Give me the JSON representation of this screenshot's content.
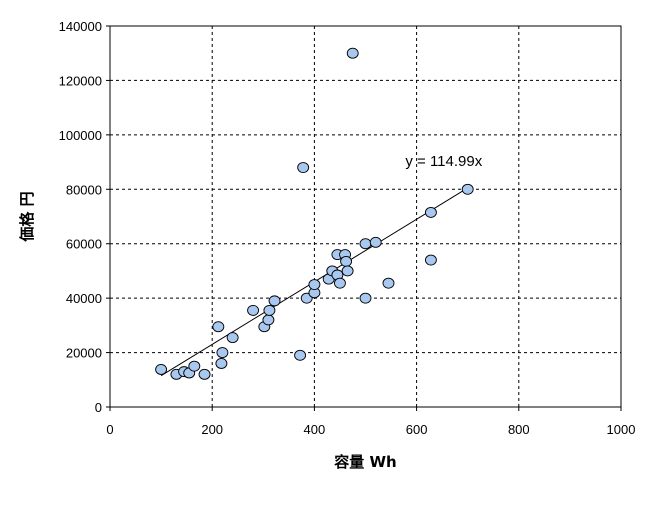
{
  "chart_data": {
    "type": "scatter",
    "xlabel": "容量 Wh",
    "ylabel": "価格 円",
    "xlim": [
      0,
      1000
    ],
    "ylim": [
      0,
      140000
    ],
    "x_ticks": [
      "0",
      "200",
      "400",
      "600",
      "800",
      "1000"
    ],
    "y_ticks": [
      "0",
      "20000",
      "40000",
      "60000",
      "80000",
      "100000",
      "120000",
      "140000"
    ],
    "grid": true,
    "point_color": "#a9c8f0",
    "point_edge_color": "#000000",
    "trendline": {
      "slope": 114.99,
      "x_start": 100,
      "x_end": 700,
      "label": "y = 114.99x"
    },
    "points": [
      [
        100,
        13800
      ],
      [
        130,
        12000
      ],
      [
        145,
        13000
      ],
      [
        155,
        12500
      ],
      [
        165,
        15000
      ],
      [
        185,
        12000
      ],
      [
        212,
        29500
      ],
      [
        218,
        16000
      ],
      [
        220,
        20000
      ],
      [
        240,
        25500
      ],
      [
        280,
        35500
      ],
      [
        302,
        29500
      ],
      [
        310,
        32000
      ],
      [
        312,
        35500
      ],
      [
        322,
        39000
      ],
      [
        372,
        19000
      ],
      [
        378,
        88000
      ],
      [
        385,
        40000
      ],
      [
        400,
        42000
      ],
      [
        400,
        45000
      ],
      [
        428,
        47000
      ],
      [
        435,
        50000
      ],
      [
        445,
        48500
      ],
      [
        445,
        56000
      ],
      [
        450,
        45500
      ],
      [
        460,
        56000
      ],
      [
        462,
        53500
      ],
      [
        465,
        50000
      ],
      [
        475,
        130000
      ],
      [
        500,
        60000
      ],
      [
        500,
        40000
      ],
      [
        520,
        60500
      ],
      [
        545,
        45500
      ],
      [
        628,
        71500
      ],
      [
        628,
        54000
      ],
      [
        700,
        80000
      ]
    ]
  }
}
